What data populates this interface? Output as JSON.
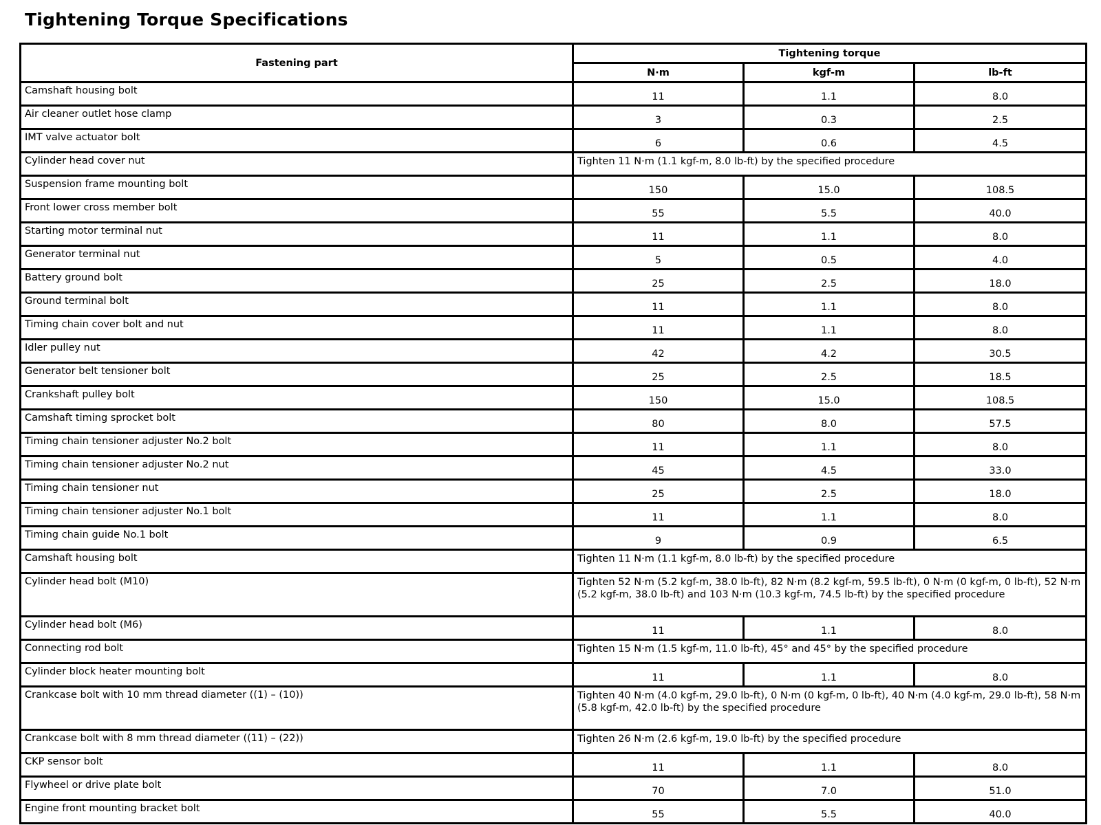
{
  "title": "Tightening Torque Specifications",
  "table": {
    "headers": {
      "part": "Fastening part",
      "torque": "Tightening torque",
      "units": [
        "N·m",
        "kgf-m",
        "lb-ft"
      ]
    },
    "rows": [
      {
        "part": "Camshaft housing bolt",
        "values": [
          "11",
          "1.1",
          "8.0"
        ]
      },
      {
        "part": "Air cleaner outlet hose clamp",
        "values": [
          "3",
          "0.3",
          "2.5"
        ]
      },
      {
        "part": "IMT valve actuator bolt",
        "values": [
          "6",
          "0.6",
          "4.5"
        ]
      },
      {
        "part": "Cylinder head cover nut",
        "note": "Tighten 11 N·m (1.1 kgf-m, 8.0 lb-ft) by the specified procedure"
      },
      {
        "part": "Suspension frame mounting bolt",
        "values": [
          "150",
          "15.0",
          "108.5"
        ]
      },
      {
        "part": "Front lower cross member bolt",
        "values": [
          "55",
          "5.5",
          "40.0"
        ]
      },
      {
        "part": "Starting motor terminal nut",
        "values": [
          "11",
          "1.1",
          "8.0"
        ]
      },
      {
        "part": "Generator terminal nut",
        "values": [
          "5",
          "0.5",
          "4.0"
        ]
      },
      {
        "part": "Battery ground bolt",
        "values": [
          "25",
          "2.5",
          "18.0"
        ]
      },
      {
        "part": "Ground terminal bolt",
        "values": [
          "11",
          "1.1",
          "8.0"
        ]
      },
      {
        "part": "Timing chain cover bolt and nut",
        "values": [
          "11",
          "1.1",
          "8.0"
        ]
      },
      {
        "part": "Idler pulley nut",
        "values": [
          "42",
          "4.2",
          "30.5"
        ]
      },
      {
        "part": "Generator belt tensioner bolt",
        "values": [
          "25",
          "2.5",
          "18.5"
        ]
      },
      {
        "part": "Crankshaft pulley bolt",
        "values": [
          "150",
          "15.0",
          "108.5"
        ]
      },
      {
        "part": "Camshaft timing sprocket bolt",
        "values": [
          "80",
          "8.0",
          "57.5"
        ]
      },
      {
        "part": "Timing chain tensioner adjuster No.2 bolt",
        "values": [
          "11",
          "1.1",
          "8.0"
        ]
      },
      {
        "part": "Timing chain tensioner adjuster No.2 nut",
        "values": [
          "45",
          "4.5",
          "33.0"
        ]
      },
      {
        "part": "Timing chain tensioner nut",
        "values": [
          "25",
          "2.5",
          "18.0"
        ]
      },
      {
        "part": "Timing chain tensioner adjuster No.1 bolt",
        "values": [
          "11",
          "1.1",
          "8.0"
        ]
      },
      {
        "part": "Timing chain guide No.1 bolt",
        "values": [
          "9",
          "0.9",
          "6.5"
        ]
      },
      {
        "part": "Camshaft housing bolt",
        "note": "Tighten 11 N·m (1.1 kgf-m, 8.0 lb-ft) by the specified procedure"
      },
      {
        "part": "Cylinder head bolt (M10)",
        "note": "Tighten 52 N·m (5.2 kgf-m, 38.0 lb-ft), 82 N·m (8.2 kgf-m, 59.5 lb-ft), 0 N·m (0 kgf-m, 0 lb-ft), 52 N·m (5.2 kgf-m, 38.0 lb-ft) and 103 N·m (10.3 kgf-m, 74.5 lb-ft) by the specified procedure"
      },
      {
        "part": "Cylinder head bolt (M6)",
        "values": [
          "11",
          "1.1",
          "8.0"
        ]
      },
      {
        "part": "Connecting rod bolt",
        "note": "Tighten 15 N·m (1.5 kgf-m, 11.0 lb-ft), 45° and 45° by the specified procedure"
      },
      {
        "part": "Cylinder block heater mounting bolt",
        "values": [
          "11",
          "1.1",
          "8.0"
        ]
      },
      {
        "part": "Crankcase bolt with 10 mm thread diameter ((1) – (10))",
        "note": "Tighten 40 N·m (4.0 kgf-m, 29.0 lb-ft), 0 N·m (0 kgf-m, 0 lb-ft), 40 N·m (4.0 kgf-m, 29.0 lb-ft), 58 N·m (5.8 kgf-m, 42.0 lb-ft) by the specified procedure"
      },
      {
        "part": "Crankcase bolt with 8 mm thread diameter ((11) – (22))",
        "note": "Tighten 26 N·m (2.6 kgf-m, 19.0 lb-ft) by the specified procedure"
      },
      {
        "part": "CKP sensor bolt",
        "values": [
          "11",
          "1.1",
          "8.0"
        ]
      },
      {
        "part": "Flywheel or drive plate bolt",
        "values": [
          "70",
          "7.0",
          "51.0"
        ]
      },
      {
        "part": "Engine front mounting bracket bolt",
        "values": [
          "55",
          "5.5",
          "40.0"
        ]
      }
    ]
  }
}
